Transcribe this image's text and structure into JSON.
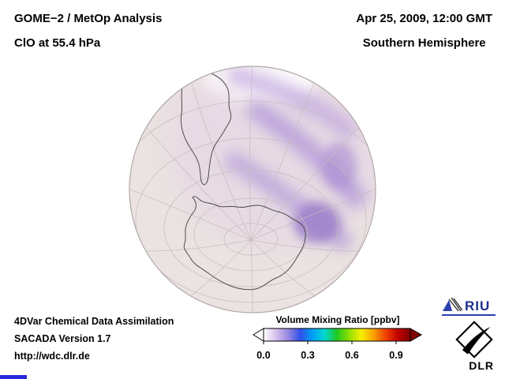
{
  "header": {
    "instrument": "GOME−2 / MetOp Analysis",
    "quantity": "ClO at 55.4 hPa",
    "datetime": "Apr 25, 2009, 12:00 GMT",
    "region": "Southern Hemisphere"
  },
  "footer": {
    "line1": "4DVar Chemical Data Assimilation",
    "line2": "SACADA Version 1.7",
    "url": "http://wdc.dlr.de"
  },
  "colorbar": {
    "title": "Volume Mixing Ratio [ppbv]",
    "ticks": [
      "0.0",
      "0.3",
      "0.6",
      "0.9"
    ],
    "colors": [
      "#ffffff",
      "#d8c0ec",
      "#9888e0",
      "#3050e8",
      "#00a0f8",
      "#00d8d0",
      "#20c820",
      "#90e000",
      "#f8f000",
      "#f8a000",
      "#f04000",
      "#c00000",
      "#800000"
    ]
  },
  "logos": {
    "riu": "RIU",
    "dlr": "DLR"
  },
  "map": {
    "projection_style": "orthographic globe, Southern Hemisphere view",
    "globe_fill": "#ebe3e1",
    "low_value_color": "#b49ad8"
  },
  "chart_data": {
    "type": "heatmap",
    "title": "GOME−2 / MetOp Analysis — ClO at 55.4 hPa",
    "datetime": "Apr 25, 2009, 12:00 GMT",
    "region": "Southern Hemisphere",
    "colorbar_label": "Volume Mixing Ratio [ppbv]",
    "scale_range": [
      0.0,
      1.0
    ],
    "tick_values": [
      0.0,
      0.3,
      0.6,
      0.9
    ],
    "observed_pattern": "Banded arcs of low ClO (~0.05-0.25 ppbv, white to light violet) sweep from the top of the globe across the Atlantic/Indian Ocean sector toward the mid-right; strongest violet patch near 45-60S east of the prime meridian; background elsewhere near 0 ppbv."
  }
}
